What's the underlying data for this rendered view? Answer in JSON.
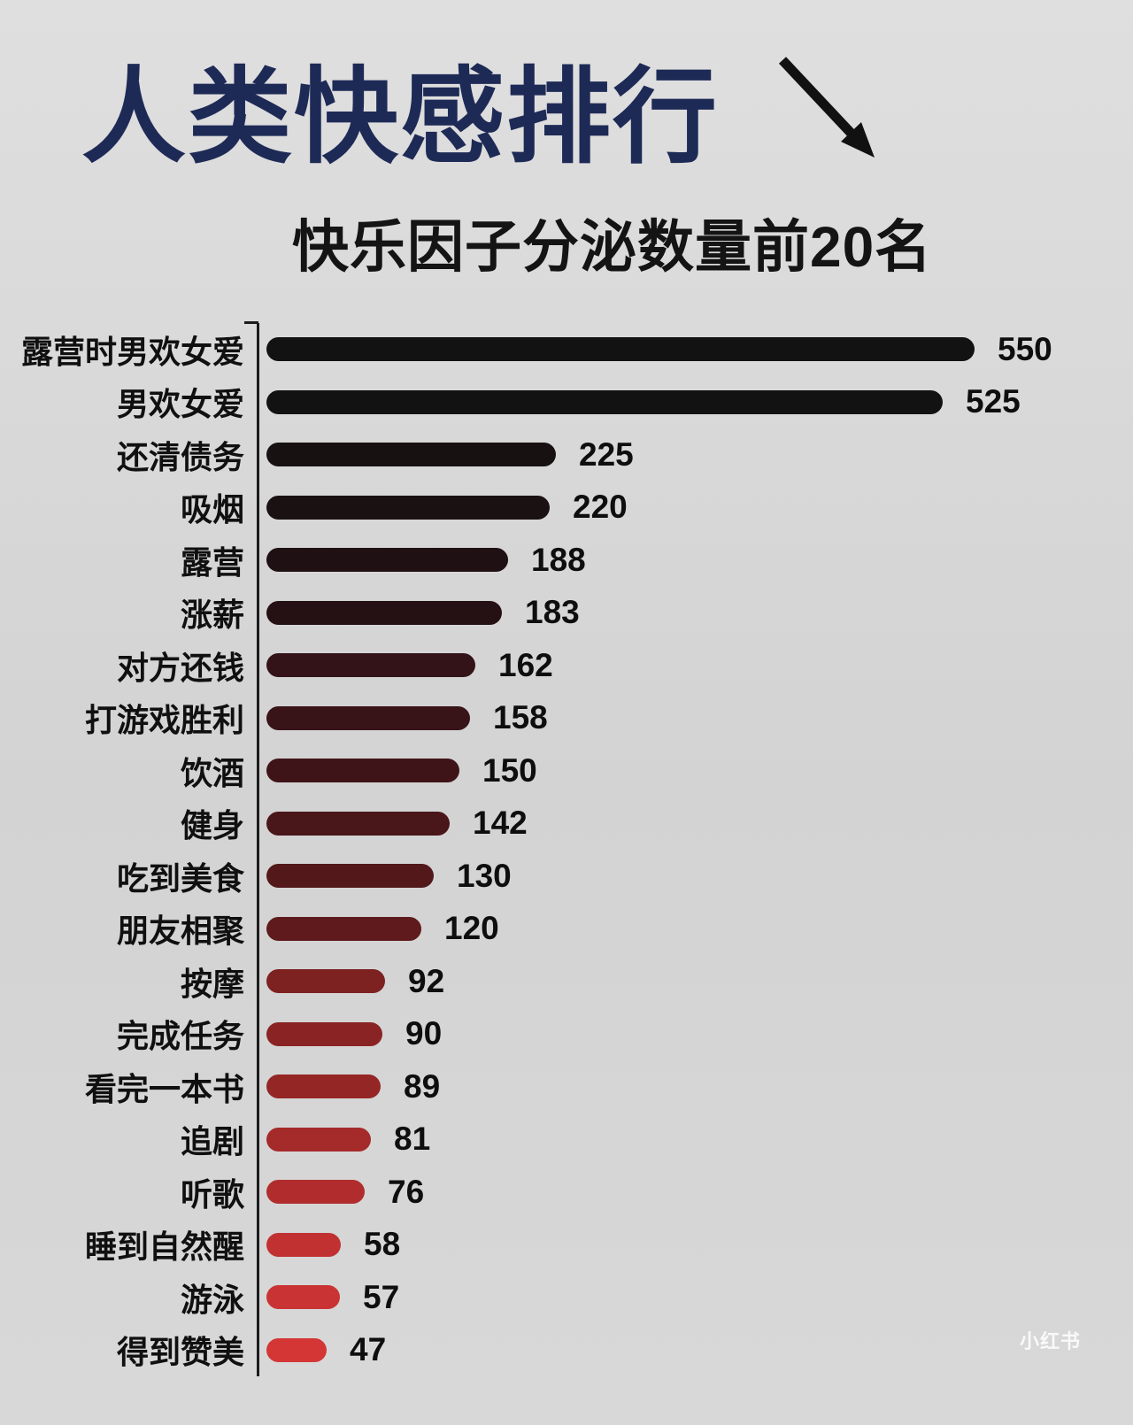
{
  "page": {
    "title": "人类快感排行",
    "subtitle": "快乐因子分泌数量前20名",
    "watermark": "小红书"
  },
  "colors": {
    "background": "#d6d6d6",
    "title": "#1e2a56",
    "text": "#101010",
    "axis": "#1b1b1b"
  },
  "icons": {
    "arrow": "down-right-arrow"
  },
  "chart_data": {
    "type": "bar",
    "orientation": "horizontal",
    "title": "人类快感排行",
    "subtitle": "快乐因子分泌数量前20名",
    "categories": [
      "露营时男欢女爱",
      "男欢女爱",
      "还清债务",
      "吸烟",
      "露营",
      "涨薪",
      "对方还钱",
      "打游戏胜利",
      "饮酒",
      "健身",
      "吃到美食",
      "朋友相聚",
      "按摩",
      "完成任务",
      "看完一本书",
      "追剧",
      "听歌",
      "睡到自然醒",
      "游泳",
      "得到赞美"
    ],
    "values": [
      550,
      525,
      225,
      220,
      188,
      183,
      162,
      158,
      150,
      142,
      130,
      120,
      92,
      90,
      89,
      81,
      76,
      58,
      57,
      47
    ],
    "bar_colors": [
      "#121212",
      "#131212",
      "#171112",
      "#191112",
      "#1e1013",
      "#251114",
      "#331318",
      "#381318",
      "#3f1418",
      "#491619",
      "#52181a",
      "#5e1a1c",
      "#7d2121",
      "#8a2424",
      "#952626",
      "#a52a2a",
      "#b12d2d",
      "#c13131",
      "#ca3333",
      "#d43636"
    ],
    "xlim": [
      0,
      550
    ],
    "grid": false,
    "legend": false,
    "value_labels": "right-of-bar"
  }
}
